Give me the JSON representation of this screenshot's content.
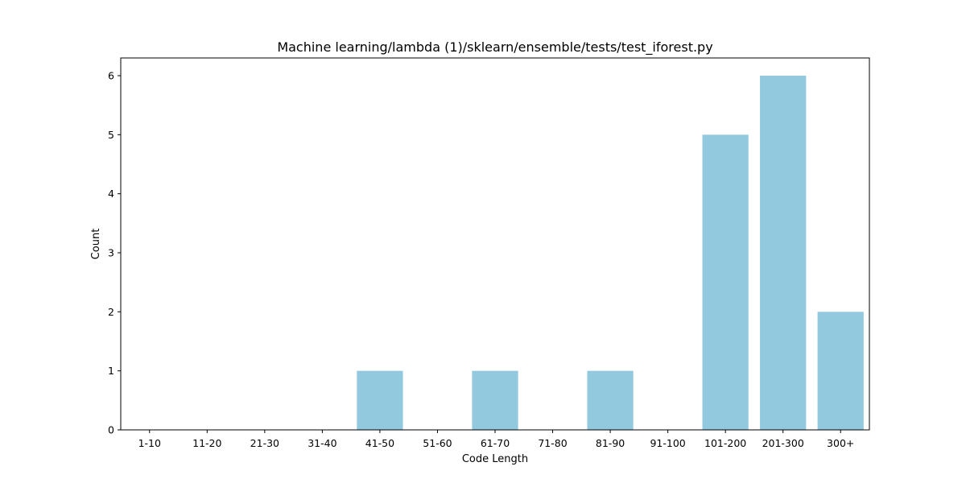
{
  "chart_data": {
    "type": "bar",
    "title": "Machine learning/lambda (1)/sklearn/ensemble/tests/test_iforest.py",
    "xlabel": "Code Length",
    "ylabel": "Count",
    "categories": [
      "1-10",
      "11-20",
      "21-30",
      "31-40",
      "41-50",
      "51-60",
      "61-70",
      "71-80",
      "81-90",
      "91-100",
      "101-200",
      "201-300",
      "300+"
    ],
    "values": [
      0,
      0,
      0,
      0,
      1,
      0,
      1,
      0,
      1,
      0,
      5,
      6,
      2
    ],
    "ylim": [
      0,
      6.3
    ],
    "yticks": [
      0,
      1,
      2,
      3,
      4,
      5,
      6
    ],
    "bar_color": "#92c9de",
    "grid": false,
    "legend": "none"
  }
}
